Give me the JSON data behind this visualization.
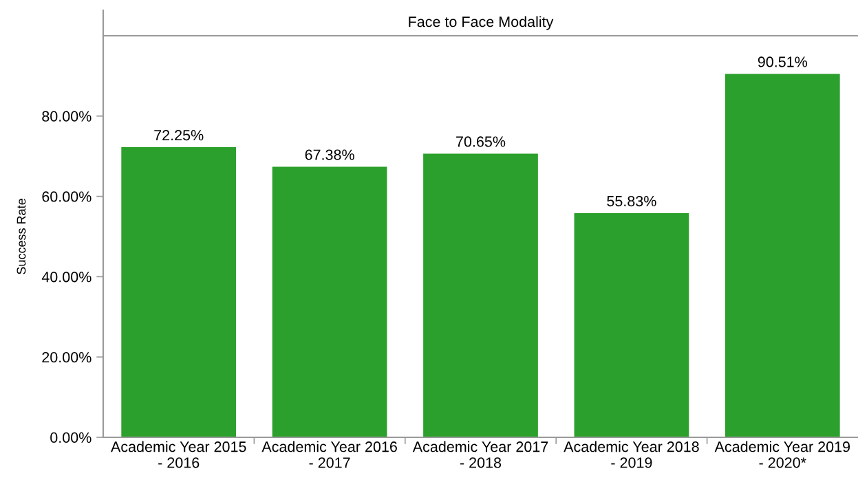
{
  "chart_data": {
    "type": "bar",
    "title": "Face to Face Modality",
    "ylabel": "Success Rate",
    "categories": [
      "Academic Year 2015\n- 2016",
      "Academic Year 2016\n- 2017",
      "Academic Year 2017\n- 2018",
      "Academic Year 2018\n- 2019",
      "Academic Year 2019\n- 2020*"
    ],
    "values": [
      72.25,
      67.38,
      70.65,
      55.83,
      90.51
    ],
    "color": "#2ca02c",
    "value_labels": [
      "72.25%",
      "67.38%",
      "70.65%",
      "55.83%",
      "90.51%"
    ],
    "ylim": [
      0,
      100
    ],
    "yticks": [
      {
        "value": 0,
        "label": "0.00%"
      },
      {
        "value": 20,
        "label": "20.00%"
      },
      {
        "value": 40,
        "label": "40.00%"
      },
      {
        "value": 60,
        "label": "60.00%"
      },
      {
        "value": 80,
        "label": "80.00%"
      }
    ]
  }
}
